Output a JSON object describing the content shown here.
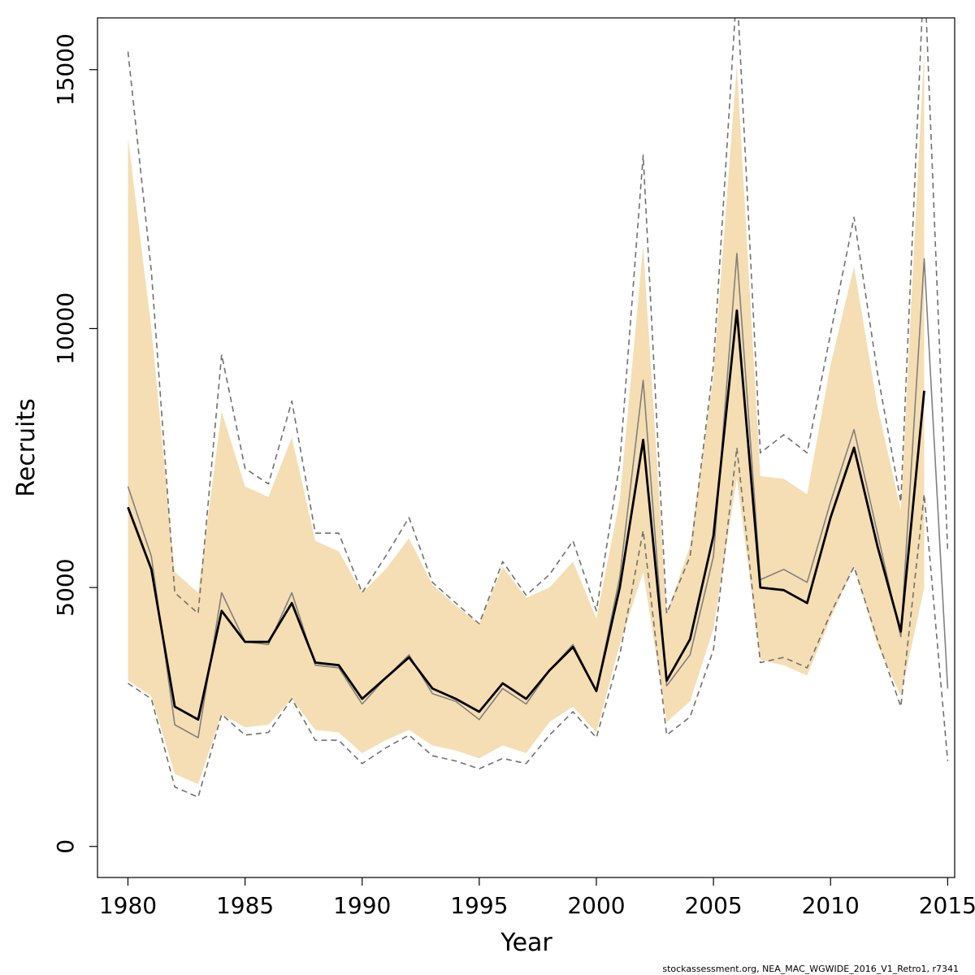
{
  "chart_data": {
    "type": "line",
    "xlabel": "Year",
    "ylabel": "Recruits",
    "xlim": [
      1978.7,
      2015.3
    ],
    "ylim": [
      -600,
      16000
    ],
    "x_ticks": [
      1980,
      1985,
      1990,
      1995,
      2000,
      2005,
      2010,
      2015
    ],
    "y_ticks": [
      0,
      5000,
      10000,
      15000
    ],
    "footer": "stockassessment.org, NEA_MAC_WGWIDE_2016_V1_Retro1, r7341",
    "colors": {
      "band": "#f5deb3",
      "estimate": "#000000",
      "reference": "#808080",
      "reference_ci": "#707070"
    },
    "band": {
      "x": [
        1980,
        1981,
        1982,
        1983,
        1984,
        1985,
        1986,
        1987,
        1988,
        1989,
        1990,
        1991,
        1992,
        1993,
        1994,
        1995,
        1996,
        1997,
        1998,
        1999,
        2000,
        2001,
        2002,
        2003,
        2004,
        2005,
        2006,
        2007,
        2008,
        2009,
        2010,
        2011,
        2012,
        2013,
        2014
      ],
      "lower": [
        3200,
        2900,
        1400,
        1200,
        2550,
        2300,
        2350,
        2850,
        2250,
        2200,
        1800,
        2050,
        2250,
        1950,
        1850,
        1700,
        1950,
        1800,
        2400,
        2700,
        2200,
        3900,
        5300,
        2400,
        2800,
        4200,
        7100,
        3600,
        3500,
        3300,
        4400,
        5400,
        3900,
        2900,
        5000
      ],
      "upper": [
        13700,
        10000,
        5300,
        4900,
        8400,
        6950,
        6750,
        7900,
        5900,
        5700,
        4900,
        5350,
        5950,
        5050,
        4650,
        4300,
        5400,
        4800,
        5000,
        5500,
        4400,
        6700,
        11600,
        4500,
        5800,
        9100,
        15100,
        7150,
        7100,
        6800,
        9300,
        11200,
        8500,
        6500,
        15400
      ]
    },
    "series": [
      {
        "name": "",
        "style": "solid-thick",
        "x": [
          1980,
          1981,
          1982,
          1983,
          1984,
          1985,
          1986,
          1987,
          1988,
          1989,
          1990,
          1991,
          1992,
          1993,
          1994,
          1995,
          1996,
          1997,
          1998,
          1999,
          2000,
          2001,
          2002,
          2003,
          2004,
          2005,
          2006,
          2007,
          2008,
          2009,
          2010,
          2011,
          2012,
          2013,
          2014
        ],
        "values": [
          6550,
          5350,
          2700,
          2450,
          4550,
          3950,
          3950,
          4700,
          3550,
          3500,
          2850,
          3250,
          3650,
          3050,
          2850,
          2600,
          3150,
          2850,
          3400,
          3850,
          3000,
          5000,
          7850,
          3200,
          4000,
          6000,
          10350,
          5000,
          4950,
          4700,
          6350,
          7700,
          5800,
          4150,
          8800
        ]
      },
      {
        "name": "",
        "style": "solid-thin",
        "x": [
          1980,
          1981,
          1982,
          1983,
          1984,
          1985,
          1986,
          1987,
          1988,
          1989,
          1990,
          1991,
          1992,
          1993,
          1994,
          1995,
          1996,
          1997,
          1998,
          1999,
          2000,
          2001,
          2002,
          2003,
          2004,
          2005,
          2006,
          2007,
          2008,
          2009,
          2010,
          2011,
          2012,
          2013,
          2014,
          2015
        ],
        "values": [
          6950,
          5600,
          2350,
          2100,
          4900,
          3950,
          3900,
          4900,
          3500,
          3450,
          2750,
          3250,
          3700,
          2950,
          2800,
          2450,
          3050,
          2750,
          3400,
          3900,
          3000,
          5200,
          9000,
          3100,
          3700,
          5600,
          11450,
          5150,
          5350,
          5100,
          6650,
          8050,
          6050,
          4050,
          11350,
          3050
        ]
      },
      {
        "name": "",
        "style": "dashed",
        "x": [
          1980,
          1981,
          1982,
          1983,
          1984,
          1985,
          1986,
          1987,
          1988,
          1989,
          1990,
          1991,
          1992,
          1993,
          1994,
          1995,
          1996,
          1997,
          1998,
          1999,
          2000,
          2001,
          2002,
          2003,
          2004,
          2005,
          2006,
          2007,
          2008,
          2009,
          2010,
          2011,
          2012,
          2013,
          2014,
          2015
        ],
        "values": [
          15350,
          11100,
          4900,
          4500,
          9500,
          7300,
          7000,
          8600,
          6050,
          6050,
          4900,
          5600,
          6350,
          5100,
          4700,
          4300,
          5500,
          4850,
          5250,
          5900,
          4550,
          7400,
          13350,
          4500,
          5600,
          9300,
          16600,
          7600,
          7950,
          7600,
          9900,
          12150,
          9150,
          6650,
          17000,
          5700
        ]
      },
      {
        "name": "",
        "style": "dashed",
        "x": [
          1980,
          1981,
          1982,
          1983,
          1984,
          1985,
          1986,
          1987,
          1988,
          1989,
          1990,
          1991,
          1992,
          1993,
          1994,
          1995,
          1996,
          1997,
          1998,
          1999,
          2000,
          2001,
          2002,
          2003,
          2004,
          2005,
          2006,
          2007,
          2008,
          2009,
          2010,
          2011,
          2012,
          2013,
          2014,
          2015
        ],
        "values": [
          3150,
          2850,
          1150,
          950,
          2550,
          2150,
          2200,
          2850,
          2050,
          2050,
          1600,
          1900,
          2150,
          1750,
          1650,
          1500,
          1700,
          1600,
          2150,
          2600,
          2100,
          3700,
          6100,
          2150,
          2500,
          3800,
          7700,
          3550,
          3650,
          3450,
          4500,
          5400,
          4000,
          2700,
          6800,
          1650
        ]
      }
    ]
  }
}
